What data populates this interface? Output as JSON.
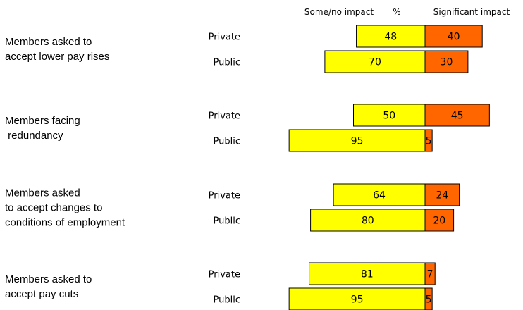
{
  "chart_data": {
    "type": "bar",
    "orientation": "horizontal-diverging",
    "legend": {
      "left": "Some/no impact",
      "center": "%",
      "right": "Significant impact"
    },
    "colors": {
      "some_no_impact": "#ffff00",
      "significant_impact": "#ff6600",
      "bar_stroke": "#000000"
    },
    "groups": [
      {
        "label_lines": [
          "Members asked to",
          "accept lower pay rises"
        ],
        "rows": [
          {
            "sector": "Private",
            "some_no_impact": 48,
            "significant_impact": 40
          },
          {
            "sector": "Public",
            "some_no_impact": 70,
            "significant_impact": 30
          }
        ]
      },
      {
        "label_lines": [
          "Members facing",
          " redundancy"
        ],
        "rows": [
          {
            "sector": "Private",
            "some_no_impact": 50,
            "significant_impact": 45
          },
          {
            "sector": "Public",
            "some_no_impact": 95,
            "significant_impact": 5
          }
        ]
      },
      {
        "label_lines": [
          "Members asked",
          "to accept changes to",
          "conditions of employment"
        ],
        "rows": [
          {
            "sector": "Private",
            "some_no_impact": 64,
            "significant_impact": 24
          },
          {
            "sector": "Public",
            "some_no_impact": 80,
            "significant_impact": 20
          }
        ]
      },
      {
        "label_lines": [
          "Members asked to",
          "accept pay cuts"
        ],
        "rows": [
          {
            "sector": "Private",
            "some_no_impact": 81,
            "significant_impact": 7
          },
          {
            "sector": "Public",
            "some_no_impact": 95,
            "significant_impact": 5
          }
        ]
      }
    ]
  }
}
